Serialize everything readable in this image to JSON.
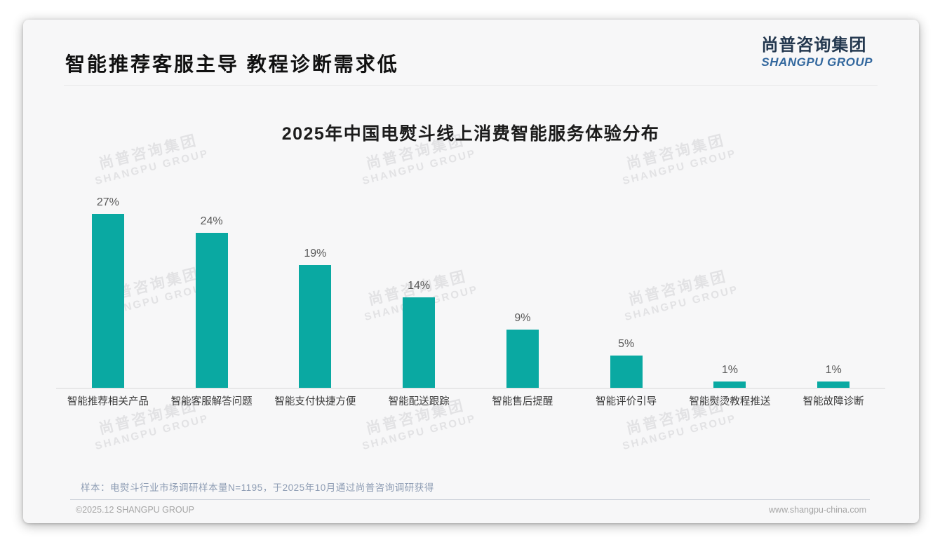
{
  "header": {
    "title": "智能推荐客服主导 教程诊断需求低",
    "logo_cn": "尚普咨询集团",
    "logo_en": "SHANGPU GROUP"
  },
  "watermark": {
    "cn": "尚普咨询集团",
    "en": "SHANGPU GROUP"
  },
  "chart_data": {
    "type": "bar",
    "title": "2025年中国电熨斗线上消费智能服务体验分布",
    "categories": [
      "智能推荐相关产品",
      "智能客服解答问题",
      "智能支付快捷方便",
      "智能配送跟踪",
      "智能售后提醒",
      "智能评价引导",
      "智能熨烫教程推送",
      "智能故障诊断"
    ],
    "values": [
      27,
      24,
      19,
      14,
      9,
      5,
      1,
      1
    ],
    "unit": "%",
    "bar_color": "#0aa9a2",
    "value_label_color": "#595959",
    "ylim": [
      0,
      30
    ],
    "grid": false,
    "legend": false,
    "value_labels": true,
    "xlabel": "",
    "ylabel": ""
  },
  "note": "样本：电熨斗行业市场调研样本量N=1195，于2025年10月通过尚普咨询调研获得",
  "footer": {
    "left": "©2025.12 SHANGPU GROUP",
    "right": "www.shangpu-china.com"
  }
}
